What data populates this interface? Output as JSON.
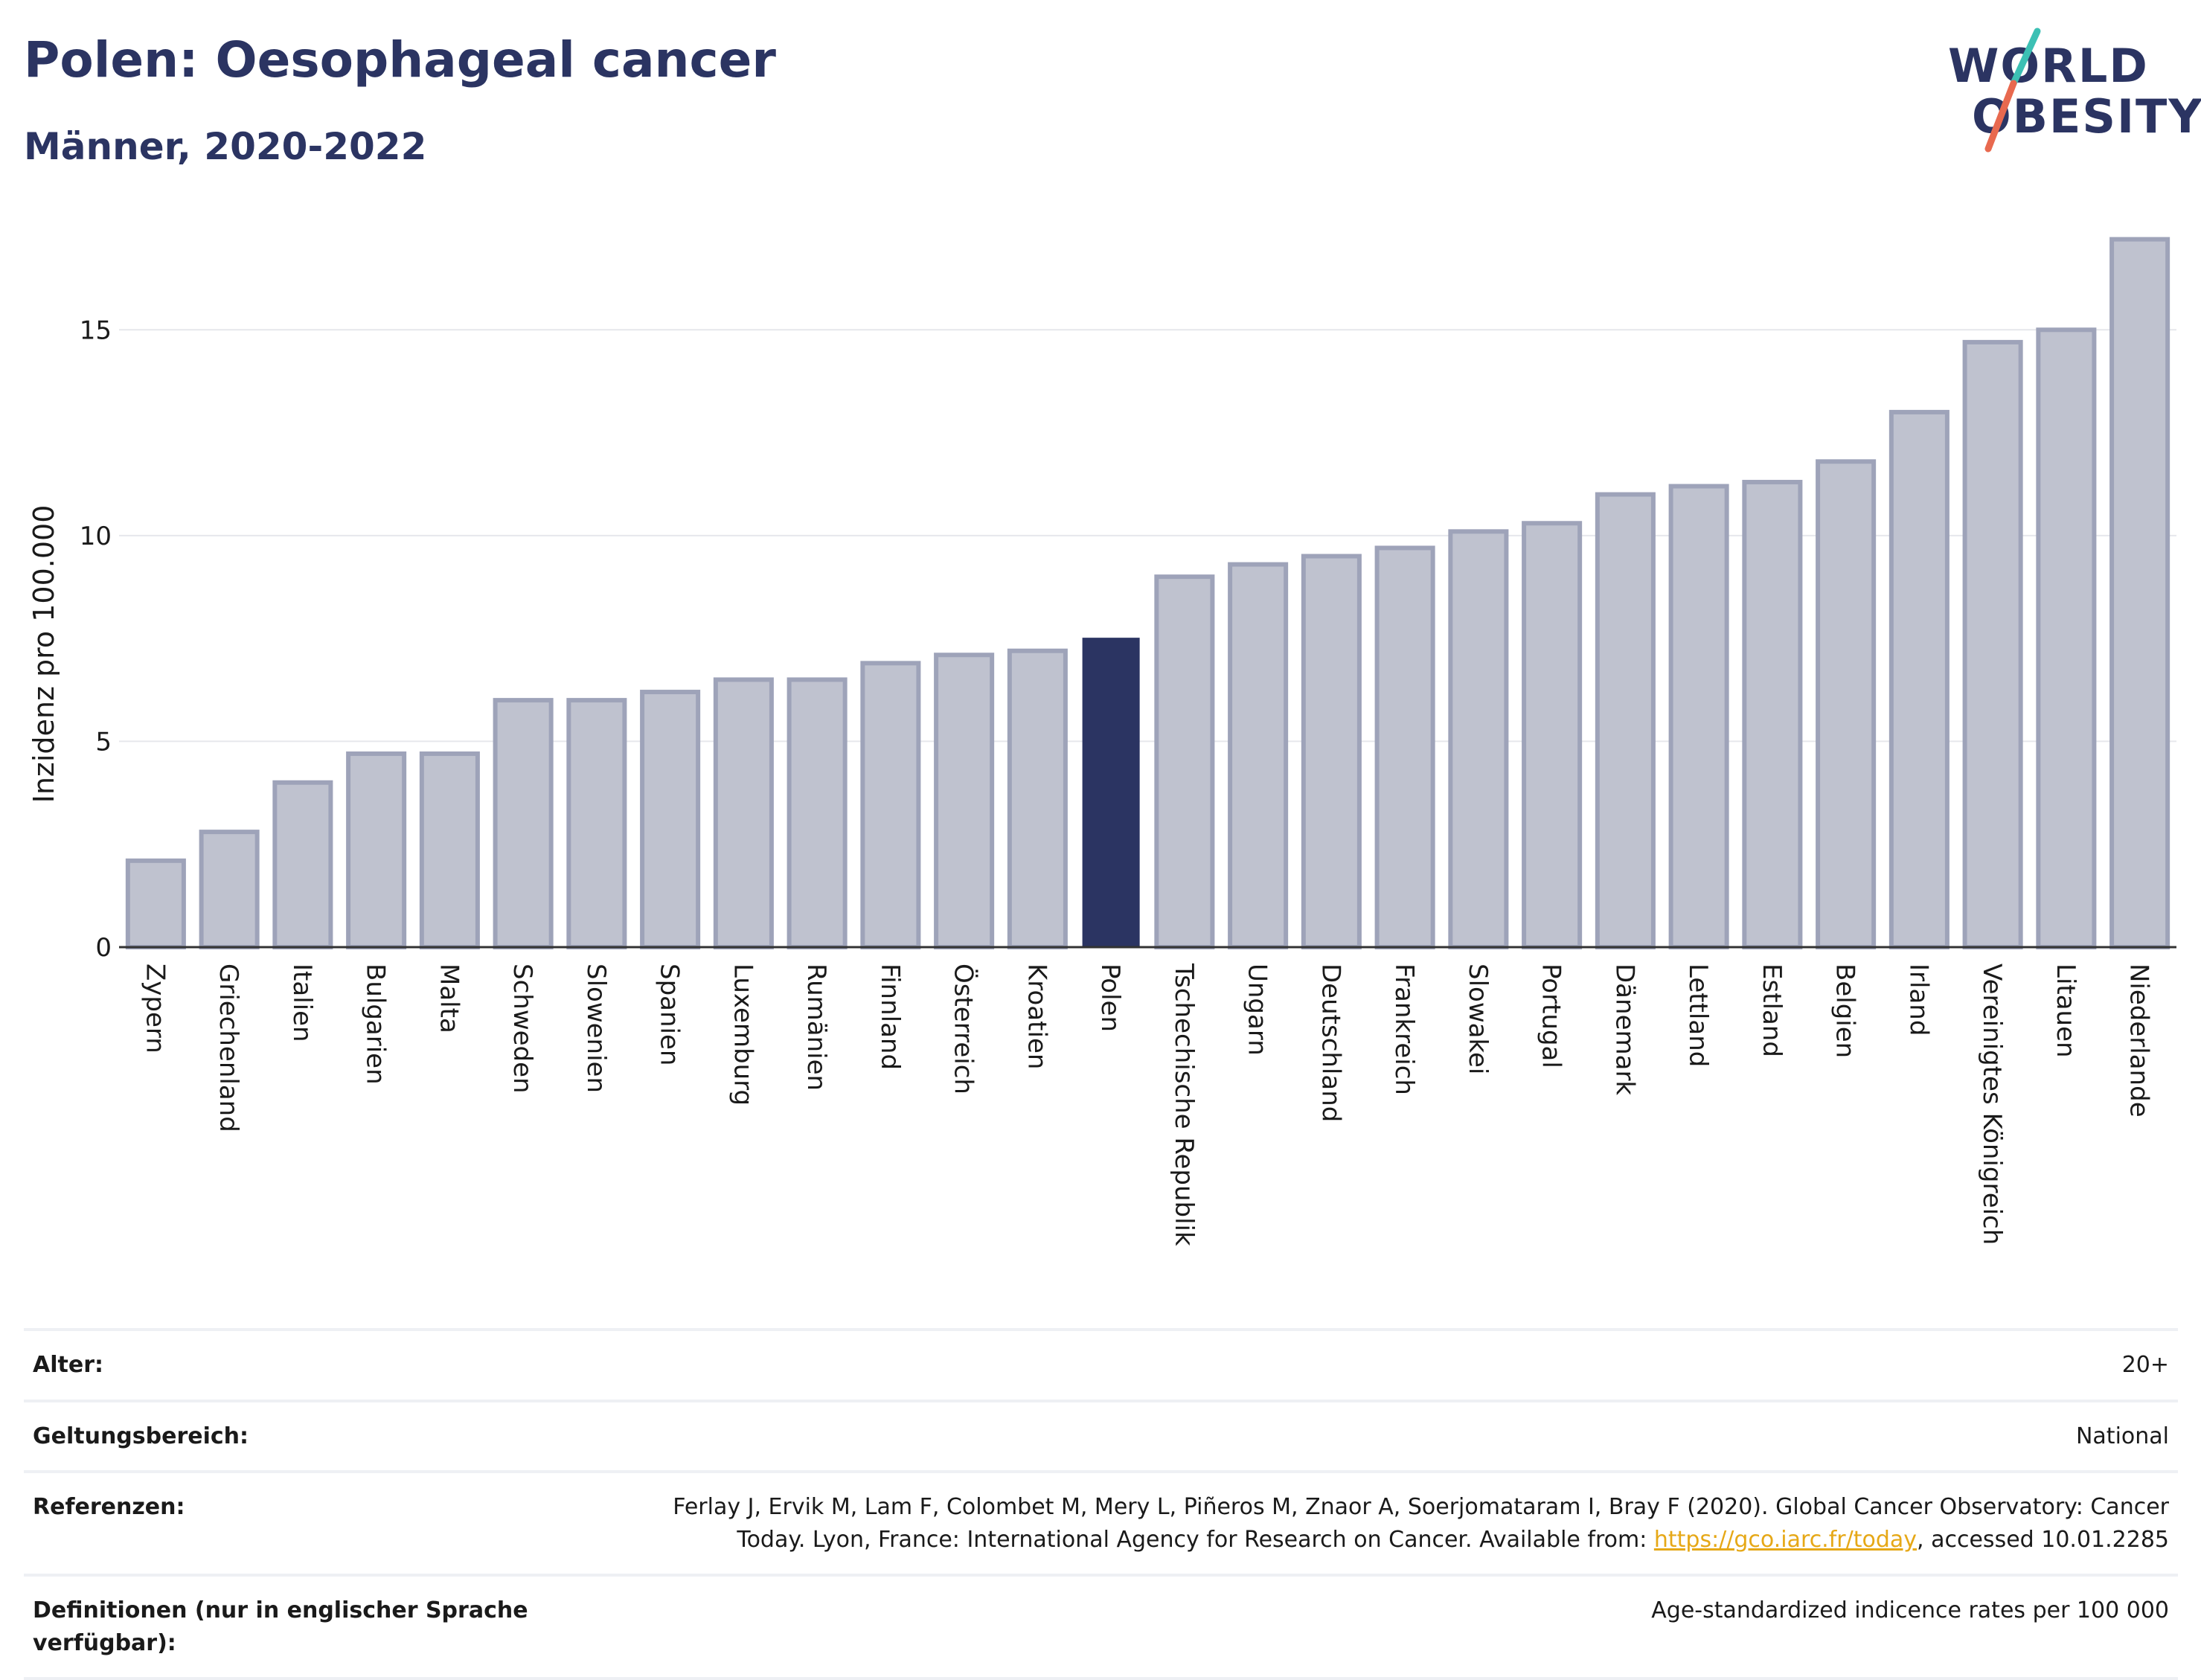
{
  "header": {
    "title": "Polen: Oesophageal cancer",
    "subtitle": "Männer, 2020-2022"
  },
  "logo": {
    "line1": "WORLD",
    "line2": "OBESITY",
    "slash_colors": [
      "#3cc0b4",
      "#e8694f"
    ]
  },
  "colors": {
    "highlight": "#2b3462",
    "bar_fill": "#bfc2cf",
    "bar_stroke": "#9ea3b9",
    "grid": "#e6e7ec"
  },
  "chart_data": {
    "type": "bar",
    "ylabel": "Inzidenz pro 100.000",
    "ylim": [
      0,
      17.5
    ],
    "yticks": [
      0,
      5,
      10,
      15
    ],
    "grid": true,
    "highlight": "Polen",
    "categories": [
      "Zypern",
      "Griechenland",
      "Italien",
      "Bulgarien",
      "Malta",
      "Schweden",
      "Slowenien",
      "Spanien",
      "Luxemburg",
      "Rumänien",
      "Finnland",
      "Österreich",
      "Kroatien",
      "Polen",
      "Tschechische Republik",
      "Ungarn",
      "Deutschland",
      "Frankreich",
      "Slowakei",
      "Portugal",
      "Dänemark",
      "Lettland",
      "Estland",
      "Belgien",
      "Irland",
      "Vereinigtes Königreich",
      "Litauen",
      "Niederlande"
    ],
    "values": [
      2.1,
      2.8,
      4.0,
      4.7,
      4.7,
      6.0,
      6.0,
      6.2,
      6.5,
      6.5,
      6.9,
      7.1,
      7.2,
      7.5,
      9.0,
      9.3,
      9.5,
      9.7,
      10.1,
      10.3,
      11.0,
      11.2,
      11.3,
      11.8,
      13.0,
      14.7,
      15.0,
      17.2
    ]
  },
  "meta": {
    "age_label": "Alter:",
    "age_value": "20+",
    "scope_label": "Geltungsbereich:",
    "scope_value": "National",
    "ref_label": "Referenzen:",
    "ref_text_1": "Ferlay J, Ervik M, Lam F, Colombet M, Mery L, Piñeros M, Znaor A, Soerjomataram I, Bray F (2020). Global Cancer Observatory: Cancer",
    "ref_text_2": "Today. Lyon, France: International Agency for Research on Cancer. Available from: ",
    "ref_link": "https://gco.iarc.fr/today",
    "ref_text_3": ", accessed 10.01.2285",
    "def_label": "Definitionen (nur in englischer Sprache verfügbar):",
    "def_value": "Age-standardized indicence rates per 100 000"
  }
}
